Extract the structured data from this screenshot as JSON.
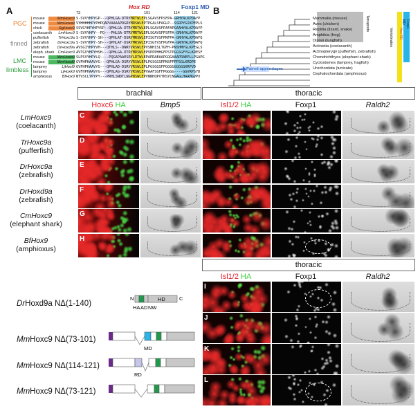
{
  "panels": {
    "A": "A",
    "B": "B",
    "C": "C",
    "D": "D",
    "E": "E",
    "F": "F",
    "G": "G",
    "H": "H",
    "I": "I",
    "J": "J",
    "K": "K",
    "L": "L"
  },
  "alignment": {
    "hox_rd": "Hox RD",
    "foxp1_md": "Foxp1 MD",
    "pos": [
      "73",
      "101",
      "114",
      "121"
    ],
    "groups": [
      {
        "label": "PGC",
        "color": "#e8761e"
      },
      {
        "label": "finned",
        "color": "#888888"
      },
      {
        "label": "LMC",
        "color": "#2a9a3a"
      },
      {
        "label": "limbless",
        "color": "#2a9a3a"
      }
    ],
    "rows": [
      {
        "species": "mouse",
        "gene": "MmHoxc9",
        "seq": "S-SVVYHPYGP---QPHLGA-DTRYMRTWLEPLSGAVSFPSFPA-GRHYALKPDAYP"
      },
      {
        "species": "mouse",
        "gene": "MmHoxa9",
        "seq": "VYHHHHHPYPHPQAPVAAAAPDGRYMRSWLEPTPGALSFAGLP--SSRPYGIKPEPLS"
      },
      {
        "species": "chick",
        "gene": "GgHoxc9",
        "seq": "SSVGYHPYHPYSP--QPHLGA-DTRYMRTWLEPLSGAVSFPAFAPGAAHYALKPDAYP"
      },
      {
        "species": "coelacanth",
        "gene": "LmHoxc9",
        "seq": "S-SVVYHPY--PQ---PHLGA-DTRYMRTWLEPLSGAVSFPSFPA-GRHYALKPDAYP"
      },
      {
        "species": "pufferfish",
        "gene": "TrHoxc9a",
        "seq": "S-SVVYHPY-SH---QPHLAT-DSRYMRSWLEPISGTVSFPNFPA-GRHYALKPDAFQ"
      },
      {
        "species": "zebrafish",
        "gene": "DrHoxc9a",
        "seq": "S-SVVYHPY-SH---QPHLAT-DSRYMRSWLEPISGTVSFPGFPA-GRHYALKPDAFQ"
      },
      {
        "species": "zebrafish",
        "gene": "DrHoxd9a",
        "seq": "AVSGIYHPYVH---QTHLS--DNRYVRSWLEPVSNHISLTGFH-PNSHMYGLKPEGLS"
      },
      {
        "species": "eleph. shark",
        "gene": "CmHoxc9",
        "seq": "AVTGVYHPYHSH---QPHLGA-DTRYMRSWLEPVPPPHHGFPSTPGGSGFYGLKRESF"
      },
      {
        "species": "mouse",
        "gene": "MmHoxb9",
        "seq": "SLPSVYHPYLQ----PQGAPAAESRYLRTWLEPAPRAEAAPGQGAAAPRAEPLLPGAPG"
      },
      {
        "species": "mouse",
        "gene": "MmHoxd9",
        "seq": "GVFHPHAAVYG---QPHLGA-DSRYVRSWLEPLPGSGGSPPNSFPPPSGLKRDPE"
      },
      {
        "species": "lamprey",
        "gene": "LjHoxl9",
        "seq": "GVFHPHAAVYG---QPHLAD-DSRYVRSWLEPLPGSGGSFPGGGGGGGGGKRPVD"
      },
      {
        "species": "lamprey",
        "gene": "LjHoxk9",
        "seq": "GVFHPHAAVYG---QPHLAG-DSRYVRSWLEPVAAFSGFFPGGGG----GGVRPSYD"
      },
      {
        "species": "amphioxus",
        "gene": "BfHox9",
        "seq": "NTVSCLYPYPY---PRHLSNDTLNGPNSWLEPVNNHQPVTNSYCNGAGLHAAMGVPV"
      }
    ]
  },
  "tree": {
    "taxa": [
      "Mammalia (mouse)",
      "Aves (chicken)",
      "Reptilia (lizard, snake)",
      "Amphibia (frog)",
      "Dipnoi (lungfish)",
      "Actinistia (coelacanth)",
      "Actinopterygii (pufferfish, zebrafish)",
      "Chondrichthyes (elephant shark)",
      "Cyclostomes (lamprey, hagfish)",
      "Urochordata (tunicate)",
      "Cephalochordata (amphioxus)"
    ],
    "tetrapods": "Tetrapods",
    "vertebrates": "Vertebrates",
    "hox_rd": "Hox RD",
    "foxp1_md": "Foxp1 MD",
    "paired": "Paired appendages",
    "colors": {
      "tetrapods": "#b8b8b8",
      "vertebrates": "#d9d9d9",
      "hox_rd": "#f5e11a",
      "foxp1_md": "#29b5e8",
      "arrow": "#3a6fc2"
    }
  },
  "headers": {
    "brachial": "brachial",
    "thoracic": "thoracic",
    "thoracic2": "thoracic"
  },
  "columns": {
    "hoxc6": "Hoxc6",
    "ha": "HA",
    "bmp5": "Bmp5",
    "isl": "Isl1/2",
    "foxp1": "Foxp1",
    "raldh2": "Raldh2"
  },
  "rows": [
    {
      "gene": "LmHoxc9",
      "species": "(coelacanth)"
    },
    {
      "gene": "TrHoxc9a",
      "species": "(pufferfish)"
    },
    {
      "gene": "DrHoxc9a",
      "species": "(zebrafish)"
    },
    {
      "gene": "DrHoxd9a",
      "species": "(zebrafish)"
    },
    {
      "gene": "CmHoxc9",
      "species": "(elephant shark)"
    },
    {
      "gene": "BfHox9",
      "species": "(amphioxus)"
    }
  ],
  "constructs": [
    {
      "gene": "Dr",
      "name": "Hoxd9a NΔ(1-140)"
    },
    {
      "gene": "Mm",
      "name": "Hoxc9 NΔ(73-101)"
    },
    {
      "gene": "Mm",
      "name": "Hoxc9 NΔ(114-121)"
    },
    {
      "gene": "Mm",
      "name": "Hoxc9 NΔ(73-121)"
    }
  ],
  "domain_labels": {
    "N": "N",
    "C": "C",
    "HD": "HD",
    "HA": "HA",
    "AD": "AD",
    "NW": "NW",
    "MD": "MD",
    "RD": "RD"
  },
  "colors": {
    "red": "#e0202a",
    "green": "#3ad13a",
    "purple": "#6a2a8a",
    "green_box": "#1e9a4a",
    "cyan_box": "#29b5e8",
    "lilac": "#c6c6ea",
    "gray_box": "#c8c8c8"
  }
}
